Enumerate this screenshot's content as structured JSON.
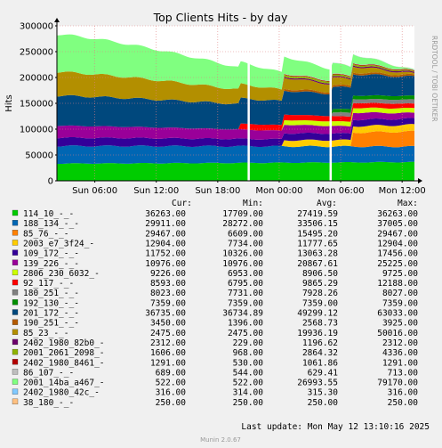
{
  "chart_data": {
    "type": "area",
    "title": "Top Clients Hits - by day",
    "ylabel": "Hits",
    "side_label": "RRDTOOL / TOBI OETIKER",
    "ylim": [
      0,
      300000
    ],
    "y_ticks": [
      0,
      50000,
      100000,
      150000,
      200000,
      250000,
      300000
    ],
    "y_tick_labels": [
      "0",
      "50000",
      "100000",
      "150000",
      "200000",
      "250000",
      "300000"
    ],
    "x_tick_labels": [
      "Sun 06:00",
      "Sun 12:00",
      "Sun 18:00",
      "Mon 00:00",
      "Mon 06:00",
      "Mon 12:00"
    ],
    "x_tick_positions_hours": [
      6,
      12,
      18,
      24,
      30,
      36
    ],
    "x_range_hours": [
      2.3,
      37.2
    ],
    "grid": true,
    "stacked": true,
    "gaps_hours": [
      21.0,
      29.0
    ],
    "legend_header": {
      "cur": "Cur:",
      "min": "Min:",
      "avg": "Avg:",
      "max": "Max:"
    },
    "series": [
      {
        "name": "114_10_-_-",
        "color": "#00cc00",
        "cur": "36263.00",
        "min": "17709.00",
        "avg": "27419.59",
        "max": "36263.00",
        "start_hour": 2.3
      },
      {
        "name": "188_134_-_-",
        "color": "#0066b3",
        "cur": "29911.00",
        "min": "28272.00",
        "avg": "33506.15",
        "max": "37005.00",
        "start_hour": 2.3
      },
      {
        "name": "85_76_-_-",
        "color": "#ff8000",
        "cur": "29467.00",
        "min": "6609.00",
        "avg": "15495.20",
        "max": "29467.00",
        "start_hour": 31.0
      },
      {
        "name": "2003_e7_3f24_-",
        "color": "#ffcc00",
        "cur": "12904.00",
        "min": "7734.00",
        "avg": "11777.65",
        "max": "12904.00",
        "start_hour": 24.3
      },
      {
        "name": "109_172_-_-",
        "color": "#330099",
        "cur": "11752.00",
        "min": "10326.00",
        "avg": "13063.28",
        "max": "17456.00",
        "start_hour": 2.3
      },
      {
        "name": "139_226_-_-",
        "color": "#990099",
        "cur": "10976.00",
        "min": "10976.00",
        "avg": "20867.61",
        "max": "25225.00",
        "start_hour": 2.3
      },
      {
        "name": "2806_230_6032_-",
        "color": "#ccff00",
        "cur": "9226.00",
        "min": "6953.00",
        "avg": "8906.50",
        "max": "9725.00",
        "start_hour": 24.3
      },
      {
        "name": "92_117_-_-",
        "color": "#ff0000",
        "cur": "8593.00",
        "min": "6795.00",
        "avg": "9865.29",
        "max": "12188.00",
        "start_hour": 20.0
      },
      {
        "name": "180_251_-_-",
        "color": "#808080",
        "cur": "8023.00",
        "min": "7731.00",
        "avg": "7928.26",
        "max": "8027.00",
        "start_hour": 29.2
      },
      {
        "name": "192_130_-_-",
        "color": "#008f00",
        "cur": "7359.00",
        "min": "7359.00",
        "avg": "7359.00",
        "max": "7359.00",
        "start_hour": 29.2
      },
      {
        "name": "201_172_-_-",
        "color": "#00487d",
        "cur": "36735.00",
        "min": "36734.89",
        "avg": "49299.12",
        "max": "63033.00",
        "start_hour": 2.3
      },
      {
        "name": "190_251_-_-",
        "color": "#b35a00",
        "cur": "3450.00",
        "min": "1396.00",
        "avg": "2568.73",
        "max": "3925.00",
        "start_hour": 24.3
      },
      {
        "name": "85_23_-_-",
        "color": "#b38f00",
        "cur": "2475.00",
        "min": "2475.00",
        "avg": "19936.19",
        "max": "50016.00",
        "start_hour": 2.3
      },
      {
        "name": "2402_1980_82b0_-",
        "color": "#6b006b",
        "cur": "2312.00",
        "min": "229.00",
        "avg": "1196.62",
        "max": "2312.00",
        "start_hour": 24.3
      },
      {
        "name": "2001_2061_2098_-",
        "color": "#8fb300",
        "cur": "1606.00",
        "min": "968.00",
        "avg": "2864.32",
        "max": "4336.00",
        "start_hour": 24.3
      },
      {
        "name": "2402_1980_8461_-",
        "color": "#b30000",
        "cur": "1291.00",
        "min": "530.00",
        "avg": "1061.86",
        "max": "1291.00",
        "start_hour": 24.3
      },
      {
        "name": "86_107_-_-",
        "color": "#bebebe",
        "cur": "689.00",
        "min": "544.00",
        "avg": "629.41",
        "max": "713.00",
        "start_hour": 24.3
      },
      {
        "name": "2001_14ba_a467_-",
        "color": "#80ff80",
        "cur": "522.00",
        "min": "522.00",
        "avg": "26993.55",
        "max": "79170.00",
        "start_hour": 2.3
      },
      {
        "name": "2402_1980_42c_-",
        "color": "#80c9ff",
        "cur": "316.00",
        "min": "314.00",
        "avg": "315.30",
        "max": "316.00",
        "start_hour": 29.2
      },
      {
        "name": "38_180_-_-",
        "color": "#ffc080",
        "cur": "250.00",
        "min": "250.00",
        "avg": "250.00",
        "max": "250.00",
        "start_hour": 29.2
      }
    ],
    "last_update": "Last update: Mon May 12 13:10:16 2025",
    "footer": "Munin 2.0.67"
  }
}
